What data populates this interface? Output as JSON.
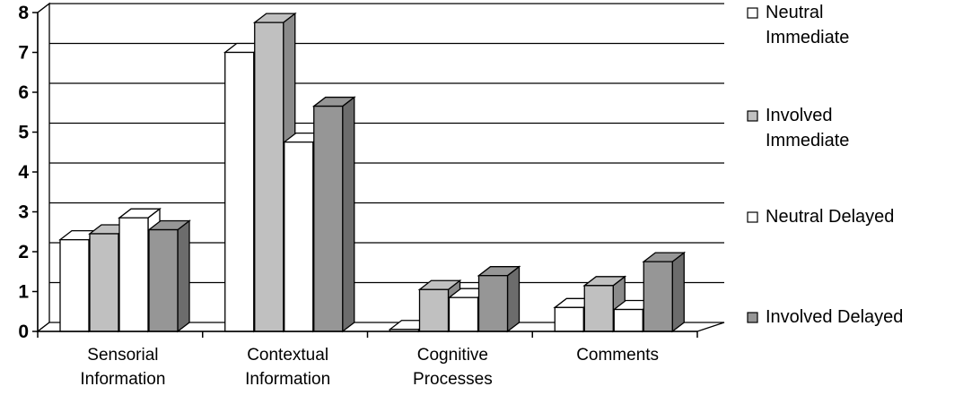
{
  "chart_data": {
    "type": "bar",
    "title": "",
    "xlabel": "",
    "ylabel": "",
    "ylim": [
      0,
      8
    ],
    "yticks": [
      0,
      1,
      2,
      3,
      4,
      5,
      6,
      7,
      8
    ],
    "grid": true,
    "legend_position": "right",
    "categories": [
      [
        "Sensorial",
        "Information"
      ],
      [
        "Contextual",
        "Information"
      ],
      [
        "Cognitive",
        "Processes"
      ],
      [
        "Comments"
      ]
    ],
    "series": [
      {
        "name": [
          "Neutral",
          "Immediate"
        ],
        "values": [
          2.3,
          7.0,
          0.05,
          0.6
        ],
        "color": "#ffffff"
      },
      {
        "name": [
          "Involved",
          "Immediate"
        ],
        "values": [
          2.45,
          7.75,
          1.05,
          1.15
        ],
        "color": "#c0c0c0"
      },
      {
        "name": [
          "Neutral Delayed"
        ],
        "values": [
          2.85,
          4.75,
          0.85,
          0.55
        ],
        "color": "#ffffff"
      },
      {
        "name": [
          "Involved Delayed"
        ],
        "values": [
          2.55,
          5.65,
          1.4,
          1.75
        ],
        "color": "#969696"
      }
    ]
  }
}
